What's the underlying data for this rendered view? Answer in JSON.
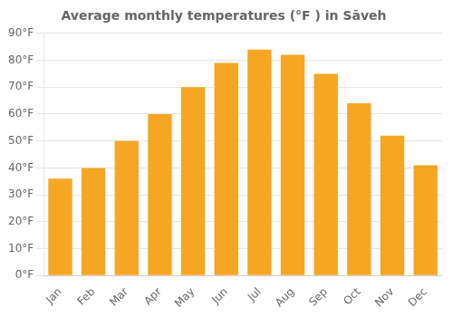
{
  "chart_data": {
    "type": "bar",
    "title": "Average monthly temperatures (°F ) in Sāveh",
    "categories": [
      "Jan",
      "Feb",
      "Mar",
      "Apr",
      "May",
      "Jun",
      "Jul",
      "Aug",
      "Sep",
      "Oct",
      "Nov",
      "Dec"
    ],
    "values": [
      36,
      40,
      50,
      60,
      70,
      79,
      84,
      82,
      75,
      64,
      52,
      41
    ],
    "color": "#F5A623",
    "ylim": [
      0,
      90
    ],
    "yticks": [
      {
        "value": 0,
        "label": "0°F"
      },
      {
        "value": 10,
        "label": "10°F"
      },
      {
        "value": 20,
        "label": "20°F"
      },
      {
        "value": 30,
        "label": "30°F"
      },
      {
        "value": 40,
        "label": "40°F"
      },
      {
        "value": 50,
        "label": "50°F"
      },
      {
        "value": 60,
        "label": "60°F"
      },
      {
        "value": 70,
        "label": "70°F"
      },
      {
        "value": 80,
        "label": "80°F"
      },
      {
        "value": 90,
        "label": "90°F"
      }
    ],
    "grid": true
  }
}
